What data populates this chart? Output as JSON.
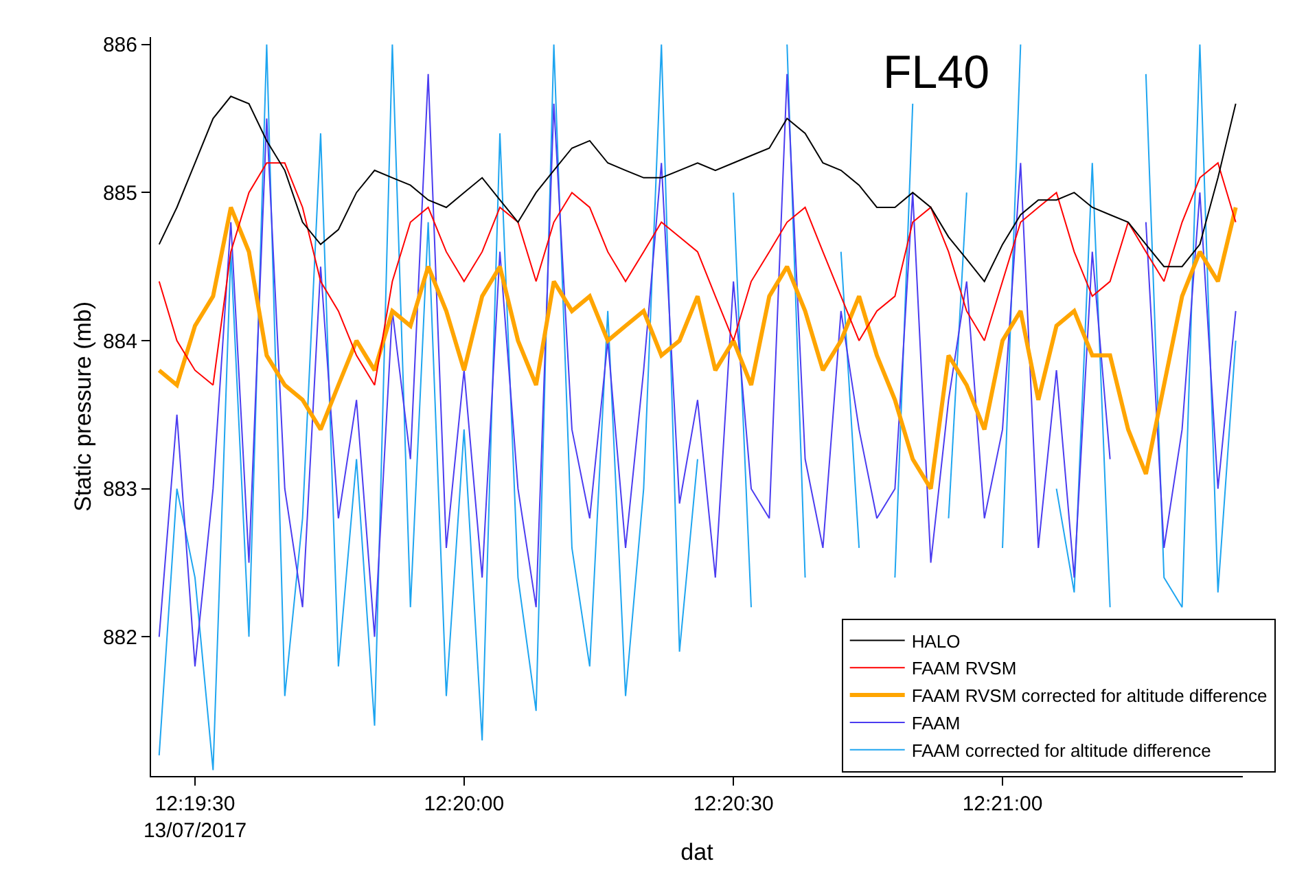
{
  "chart_data": {
    "type": "line",
    "annotations": [
      "FL40"
    ],
    "xlabel": "dat",
    "ylabel": "Static pressure (mb)",
    "x": [
      12.32389,
      12.32444,
      12.325,
      12.32556,
      12.32611,
      12.32667,
      12.32722,
      12.32778,
      12.32833,
      12.32889,
      12.32944,
      12.33,
      12.33056,
      12.33111,
      12.33167,
      12.33222,
      12.33278,
      12.33333,
      12.33389,
      12.33444,
      12.335,
      12.33556,
      12.33611,
      12.33667,
      12.33722,
      12.33778,
      12.33833,
      12.33889,
      12.33944,
      12.34,
      12.34056,
      12.34111,
      12.34167,
      12.34222,
      12.34278,
      12.34333,
      12.34389,
      12.34444,
      12.345,
      12.34556,
      12.34611,
      12.34667,
      12.34722,
      12.34778,
      12.34833,
      12.34889,
      12.34944,
      12.35,
      12.35056,
      12.35111,
      12.35167,
      12.35222,
      12.35278,
      12.35333,
      12.35389,
      12.35444,
      12.355,
      12.35556,
      12.35611,
      12.35667,
      12.35722
    ],
    "series": [
      {
        "name": "HALO",
        "color": "#000000",
        "values": [
          884.65,
          884.9,
          885.2,
          885.5,
          885.65,
          885.6,
          885.35,
          885.15,
          884.8,
          884.65,
          884.75,
          885.0,
          885.15,
          885.1,
          885.05,
          884.95,
          884.9,
          885.0,
          885.1,
          884.95,
          884.8,
          885.0,
          885.15,
          885.3,
          885.35,
          885.2,
          885.15,
          885.1,
          885.1,
          885.15,
          885.2,
          885.15,
          885.2,
          885.25,
          885.3,
          885.5,
          885.4,
          885.2,
          885.15,
          885.05,
          884.9,
          884.9,
          885.0,
          884.9,
          884.7,
          884.55,
          884.4,
          884.65,
          884.85,
          884.95,
          884.95,
          885.0,
          884.9,
          884.85,
          884.8,
          884.65,
          884.5,
          884.5,
          884.65,
          885.1,
          885.6
        ]
      },
      {
        "name": "FAAM RVSM",
        "color": "#ff0000",
        "values": [
          884.4,
          884.0,
          883.8,
          883.7,
          884.6,
          885.0,
          885.2,
          885.2,
          884.9,
          884.4,
          884.2,
          883.9,
          883.7,
          884.4,
          884.8,
          884.9,
          884.6,
          884.4,
          884.6,
          884.9,
          884.8,
          884.4,
          884.8,
          885.0,
          884.9,
          884.6,
          884.4,
          884.6,
          884.8,
          884.7,
          884.6,
          884.3,
          884.0,
          884.4,
          884.6,
          884.8,
          884.9,
          884.6,
          884.3,
          884.0,
          884.2,
          884.3,
          884.8,
          884.9,
          884.6,
          884.2,
          884.0,
          884.4,
          884.8,
          884.9,
          885.0,
          884.6,
          884.3,
          884.4,
          884.8,
          884.6,
          884.4,
          884.8,
          885.1,
          885.2,
          884.8
        ]
      },
      {
        "name": "FAAM RVSM corrected for altitude difference",
        "color": "#ffa500",
        "values": [
          883.8,
          883.7,
          884.1,
          884.3,
          884.9,
          884.6,
          883.9,
          883.7,
          883.6,
          883.4,
          883.7,
          884.0,
          883.8,
          884.2,
          884.1,
          884.5,
          884.2,
          883.8,
          884.3,
          884.5,
          884.0,
          883.7,
          884.4,
          884.2,
          884.3,
          884.0,
          884.1,
          884.2,
          883.9,
          884.0,
          884.3,
          883.8,
          884.0,
          883.7,
          884.3,
          884.5,
          884.2,
          883.8,
          884.0,
          884.3,
          883.9,
          883.6,
          883.2,
          883.0,
          883.9,
          883.7,
          883.4,
          884.0,
          884.2,
          883.6,
          884.1,
          884.2,
          883.9,
          883.9,
          883.4,
          883.1,
          883.7,
          884.3,
          884.6,
          884.4,
          884.9
        ]
      },
      {
        "name": "FAAM",
        "color": "#4b3cf0",
        "values": [
          882.0,
          883.5,
          881.8,
          883.0,
          884.8,
          882.5,
          885.5,
          883.0,
          882.2,
          884.5,
          882.8,
          883.6,
          882.0,
          884.2,
          883.2,
          885.8,
          882.6,
          883.8,
          882.4,
          884.6,
          883.0,
          882.2,
          885.6,
          883.4,
          882.8,
          884.0,
          882.6,
          883.8,
          885.2,
          882.9,
          883.6,
          882.4,
          884.4,
          883.0,
          882.8,
          885.8,
          883.2,
          882.6,
          884.2,
          883.4,
          882.8,
          883.0,
          885.0,
          882.5,
          883.6,
          884.4,
          882.8,
          883.4,
          885.2,
          882.6,
          883.8,
          882.4,
          884.6,
          883.2,
          null,
          884.8,
          882.6,
          883.4,
          885.0,
          883.0,
          884.2
        ]
      },
      {
        "name": "FAAM corrected for altitude difference",
        "color": "#1ea5f0",
        "values": [
          881.2,
          883.0,
          882.4,
          881.1,
          884.6,
          882.0,
          886.0,
          881.6,
          882.8,
          885.4,
          881.8,
          883.2,
          881.4,
          886.0,
          882.2,
          884.8,
          881.6,
          883.4,
          881.3,
          885.4,
          882.4,
          881.5,
          886.0,
          882.6,
          881.8,
          884.2,
          881.6,
          883.0,
          886.0,
          881.9,
          883.2,
          null,
          885.0,
          882.2,
          null,
          886.0,
          882.4,
          null,
          884.6,
          882.6,
          null,
          882.4,
          885.6,
          null,
          882.8,
          885.0,
          null,
          882.6,
          886.0,
          null,
          883.0,
          882.3,
          885.2,
          882.2,
          null,
          885.8,
          882.4,
          882.2,
          886.0,
          882.3,
          884.0
        ]
      }
    ],
    "xlim": [
      12.32364,
      12.35744
    ],
    "ylim": [
      881.06,
      886.05
    ],
    "xticks": [
      {
        "value": 12.325,
        "label": "12:19:30\n13/07/2017"
      },
      {
        "value": 12.33333,
        "label": "12:20:00"
      },
      {
        "value": 12.34167,
        "label": "12:20:30"
      },
      {
        "value": 12.35,
        "label": "12:21:00"
      }
    ],
    "yticks": [
      882,
      883,
      884,
      885,
      886
    ],
    "grid": false,
    "legend": "bottom right",
    "marker": "none",
    "line_style": "solid"
  }
}
